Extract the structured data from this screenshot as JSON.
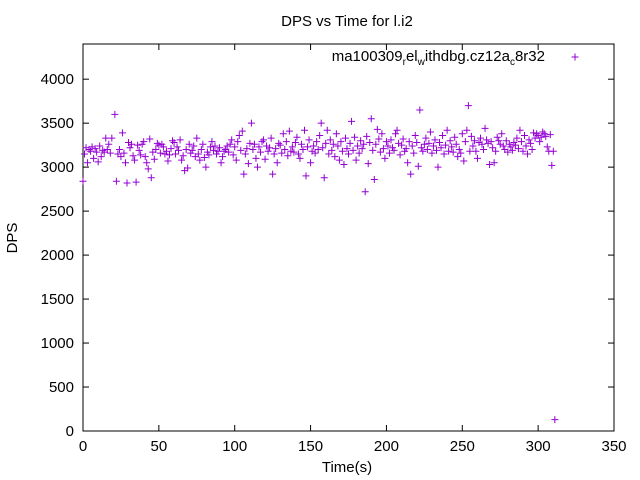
{
  "chart_data": {
    "type": "scatter",
    "title": "DPS vs Time for l.i2",
    "xlabel": "Time(s)",
    "ylabel": "DPS",
    "xlim": [
      0,
      350
    ],
    "ylim": [
      0,
      4400
    ],
    "xticks": [
      0,
      50,
      100,
      150,
      200,
      250,
      300,
      350
    ],
    "yticks": [
      0,
      500,
      1000,
      1500,
      2000,
      2500,
      3000,
      3500,
      4000
    ],
    "grid": false,
    "legend_position": "top-right",
    "marker": "plus",
    "series": [
      {
        "name_parts": [
          {
            "text": "ma100309",
            "sub": false
          },
          {
            "text": "r",
            "sub": true
          },
          {
            "text": "el",
            "sub": false
          },
          {
            "text": "w",
            "sub": true
          },
          {
            "text": "ithdbg.cz12a",
            "sub": false
          },
          {
            "text": "c",
            "sub": true
          },
          {
            "text": "8r32",
            "sub": false
          }
        ],
        "color": "#9400d3",
        "points": [
          [
            0,
            2840
          ],
          [
            1,
            3150
          ],
          [
            2,
            3220
          ],
          [
            3,
            3050
          ],
          [
            4,
            3200
          ],
          [
            5,
            3180
          ],
          [
            6,
            3230
          ],
          [
            7,
            3100
          ],
          [
            8,
            3210
          ],
          [
            9,
            3170
          ],
          [
            10,
            3060
          ],
          [
            11,
            3240
          ],
          [
            12,
            3120
          ],
          [
            13,
            3190
          ],
          [
            14,
            3170
          ],
          [
            15,
            3330
          ],
          [
            16,
            3200
          ],
          [
            17,
            3260
          ],
          [
            18,
            3160
          ],
          [
            19,
            3330
          ],
          [
            21,
            3600
          ],
          [
            22,
            2840
          ],
          [
            23,
            3150
          ],
          [
            24,
            3200
          ],
          [
            25,
            3120
          ],
          [
            26,
            3390
          ],
          [
            27,
            3160
          ],
          [
            28,
            3050
          ],
          [
            29,
            2820
          ],
          [
            30,
            3280
          ],
          [
            31,
            3220
          ],
          [
            32,
            3260
          ],
          [
            33,
            3130
          ],
          [
            34,
            3080
          ],
          [
            35,
            2830
          ],
          [
            36,
            3250
          ],
          [
            37,
            3190
          ],
          [
            38,
            3140
          ],
          [
            39,
            3260
          ],
          [
            40,
            3290
          ],
          [
            41,
            3120
          ],
          [
            42,
            3050
          ],
          [
            43,
            2980
          ],
          [
            44,
            3320
          ],
          [
            45,
            2880
          ],
          [
            46,
            3170
          ],
          [
            47,
            3090
          ],
          [
            48,
            3200
          ],
          [
            49,
            3270
          ],
          [
            50,
            3250
          ],
          [
            51,
            3160
          ],
          [
            52,
            3260
          ],
          [
            53,
            3230
          ],
          [
            54,
            3150
          ],
          [
            55,
            3180
          ],
          [
            56,
            3070
          ],
          [
            57,
            3140
          ],
          [
            58,
            3210
          ],
          [
            59,
            3300
          ],
          [
            60,
            3280
          ],
          [
            61,
            3150
          ],
          [
            62,
            3230
          ],
          [
            63,
            3190
          ],
          [
            64,
            3310
          ],
          [
            65,
            3080
          ],
          [
            66,
            3130
          ],
          [
            67,
            2960
          ],
          [
            68,
            3200
          ],
          [
            69,
            2990
          ],
          [
            70,
            3260
          ],
          [
            71,
            3160
          ],
          [
            72,
            3190
          ],
          [
            73,
            3240
          ],
          [
            74,
            3120
          ],
          [
            75,
            3330
          ],
          [
            76,
            3150
          ],
          [
            77,
            3080
          ],
          [
            78,
            3200
          ],
          [
            79,
            3260
          ],
          [
            80,
            3110
          ],
          [
            81,
            3000
          ],
          [
            82,
            3170
          ],
          [
            83,
            3140
          ],
          [
            84,
            3230
          ],
          [
            85,
            3290
          ],
          [
            86,
            3190
          ],
          [
            87,
            3240
          ],
          [
            88,
            3150
          ],
          [
            89,
            3180
          ],
          [
            90,
            3220
          ],
          [
            91,
            3050
          ],
          [
            92,
            3120
          ],
          [
            93,
            3180
          ],
          [
            94,
            3200
          ],
          [
            95,
            3240
          ],
          [
            96,
            3170
          ],
          [
            97,
            3260
          ],
          [
            98,
            3310
          ],
          [
            99,
            3140
          ],
          [
            100,
            3230
          ],
          [
            101,
            3080
          ],
          [
            102,
            3290
          ],
          [
            103,
            3360
          ],
          [
            104,
            3190
          ],
          [
            105,
            3410
          ],
          [
            106,
            2920
          ],
          [
            107,
            3150
          ],
          [
            108,
            3210
          ],
          [
            109,
            3040
          ],
          [
            110,
            3270
          ],
          [
            111,
            3500
          ],
          [
            112,
            3200
          ],
          [
            113,
            3260
          ],
          [
            114,
            3100
          ],
          [
            115,
            3000
          ],
          [
            116,
            3230
          ],
          [
            117,
            3170
          ],
          [
            118,
            3290
          ],
          [
            119,
            3310
          ],
          [
            120,
            3090
          ],
          [
            121,
            3240
          ],
          [
            122,
            3180
          ],
          [
            123,
            3220
          ],
          [
            124,
            3330
          ],
          [
            125,
            2920
          ],
          [
            126,
            3150
          ],
          [
            127,
            3210
          ],
          [
            128,
            3050
          ],
          [
            129,
            3270
          ],
          [
            130,
            3250
          ],
          [
            131,
            3160
          ],
          [
            132,
            3380
          ],
          [
            133,
            3200
          ],
          [
            134,
            3290
          ],
          [
            135,
            3130
          ],
          [
            136,
            3410
          ],
          [
            137,
            3180
          ],
          [
            138,
            3230
          ],
          [
            139,
            3170
          ],
          [
            140,
            3280
          ],
          [
            141,
            3340
          ],
          [
            142,
            3150
          ],
          [
            143,
            3100
          ],
          [
            144,
            3260
          ],
          [
            145,
            3200
          ],
          [
            146,
            3420
          ],
          [
            147,
            2900
          ],
          [
            148,
            3230
          ],
          [
            149,
            3310
          ],
          [
            150,
            3050
          ],
          [
            151,
            3180
          ],
          [
            152,
            3240
          ],
          [
            153,
            3160
          ],
          [
            154,
            3290
          ],
          [
            155,
            3200
          ],
          [
            156,
            3360
          ],
          [
            157,
            3500
          ],
          [
            158,
            3220
          ],
          [
            159,
            2880
          ],
          [
            160,
            3270
          ],
          [
            161,
            3420
          ],
          [
            162,
            3150
          ],
          [
            163,
            3310
          ],
          [
            164,
            3190
          ],
          [
            165,
            3260
          ],
          [
            166,
            3120
          ],
          [
            167,
            3380
          ],
          [
            168,
            3240
          ],
          [
            169,
            3080
          ],
          [
            170,
            3290
          ],
          [
            171,
            3180
          ],
          [
            172,
            3030
          ],
          [
            173,
            3330
          ],
          [
            174,
            3210
          ],
          [
            175,
            3150
          ],
          [
            176,
            3270
          ],
          [
            177,
            3520
          ],
          [
            178,
            3190
          ],
          [
            179,
            3340
          ],
          [
            180,
            3080
          ],
          [
            181,
            3240
          ],
          [
            182,
            3160
          ],
          [
            183,
            3300
          ],
          [
            184,
            3210
          ],
          [
            185,
            3260
          ],
          [
            186,
            2720
          ],
          [
            187,
            3350
          ],
          [
            188,
            3040
          ],
          [
            189,
            3280
          ],
          [
            190,
            3550
          ],
          [
            191,
            3190
          ],
          [
            192,
            2860
          ],
          [
            193,
            3260
          ],
          [
            194,
            3430
          ],
          [
            195,
            3320
          ],
          [
            196,
            3170
          ],
          [
            197,
            3380
          ],
          [
            198,
            3210
          ],
          [
            199,
            3100
          ],
          [
            200,
            3290
          ],
          [
            201,
            3240
          ],
          [
            202,
            3160
          ],
          [
            203,
            3310
          ],
          [
            204,
            3220
          ],
          [
            205,
            3190
          ],
          [
            206,
            3380
          ],
          [
            207,
            3420
          ],
          [
            208,
            3270
          ],
          [
            209,
            3140
          ],
          [
            210,
            3250
          ],
          [
            211,
            3320
          ],
          [
            212,
            3180
          ],
          [
            213,
            3210
          ],
          [
            214,
            3050
          ],
          [
            215,
            3290
          ],
          [
            216,
            2920
          ],
          [
            217,
            3240
          ],
          [
            218,
            3160
          ],
          [
            219,
            3360
          ],
          [
            220,
            3280
          ],
          [
            221,
            3010
          ],
          [
            222,
            3650
          ],
          [
            223,
            3220
          ],
          [
            224,
            3180
          ],
          [
            225,
            3260
          ],
          [
            226,
            3330
          ],
          [
            227,
            3200
          ],
          [
            228,
            3270
          ],
          [
            229,
            3400
          ],
          [
            230,
            3160
          ],
          [
            231,
            3240
          ],
          [
            232,
            3310
          ],
          [
            233,
            3190
          ],
          [
            234,
            3000
          ],
          [
            235,
            3280
          ],
          [
            236,
            3220
          ],
          [
            237,
            3360
          ],
          [
            238,
            3150
          ],
          [
            239,
            3250
          ],
          [
            240,
            3420
          ],
          [
            241,
            3180
          ],
          [
            242,
            3300
          ],
          [
            243,
            3230
          ],
          [
            244,
            3170
          ],
          [
            245,
            3340
          ],
          [
            246,
            3260
          ],
          [
            247,
            3120
          ],
          [
            248,
            3200
          ],
          [
            249,
            3160
          ],
          [
            250,
            3380
          ],
          [
            251,
            3070
          ],
          [
            252,
            3290
          ],
          [
            253,
            3420
          ],
          [
            254,
            3700
          ],
          [
            255,
            3180
          ],
          [
            256,
            3350
          ],
          [
            257,
            3240
          ],
          [
            258,
            3300
          ],
          [
            259,
            3180
          ],
          [
            260,
            3100
          ],
          [
            261,
            3280
          ],
          [
            262,
            3330
          ],
          [
            263,
            3260
          ],
          [
            264,
            3200
          ],
          [
            265,
            3440
          ],
          [
            266,
            3310
          ],
          [
            267,
            3270
          ],
          [
            268,
            3030
          ],
          [
            269,
            3290
          ],
          [
            270,
            3220
          ],
          [
            271,
            3050
          ],
          [
            272,
            3180
          ],
          [
            273,
            3340
          ],
          [
            274,
            3300
          ],
          [
            275,
            3260
          ],
          [
            276,
            3380
          ],
          [
            277,
            3240
          ],
          [
            278,
            3200
          ],
          [
            279,
            3300
          ],
          [
            280,
            3170
          ],
          [
            281,
            3260
          ],
          [
            282,
            3230
          ],
          [
            283,
            3190
          ],
          [
            284,
            3280
          ],
          [
            285,
            3250
          ],
          [
            286,
            3330
          ],
          [
            287,
            3210
          ],
          [
            288,
            3420
          ],
          [
            289,
            3290
          ],
          [
            290,
            3180
          ],
          [
            291,
            3360
          ],
          [
            292,
            3240
          ],
          [
            293,
            3150
          ],
          [
            294,
            3310
          ],
          [
            295,
            3270
          ],
          [
            296,
            3200
          ],
          [
            297,
            3390
          ],
          [
            298,
            3330
          ],
          [
            299,
            3380
          ],
          [
            300,
            3360
          ],
          [
            301,
            3290
          ],
          [
            302,
            3340
          ],
          [
            303,
            3400
          ],
          [
            304,
            3380
          ],
          [
            305,
            3350
          ],
          [
            306,
            3230
          ],
          [
            307,
            3180
          ],
          [
            308,
            3370
          ],
          [
            309,
            3020
          ],
          [
            310,
            3180
          ],
          [
            311,
            130
          ]
        ]
      }
    ]
  }
}
